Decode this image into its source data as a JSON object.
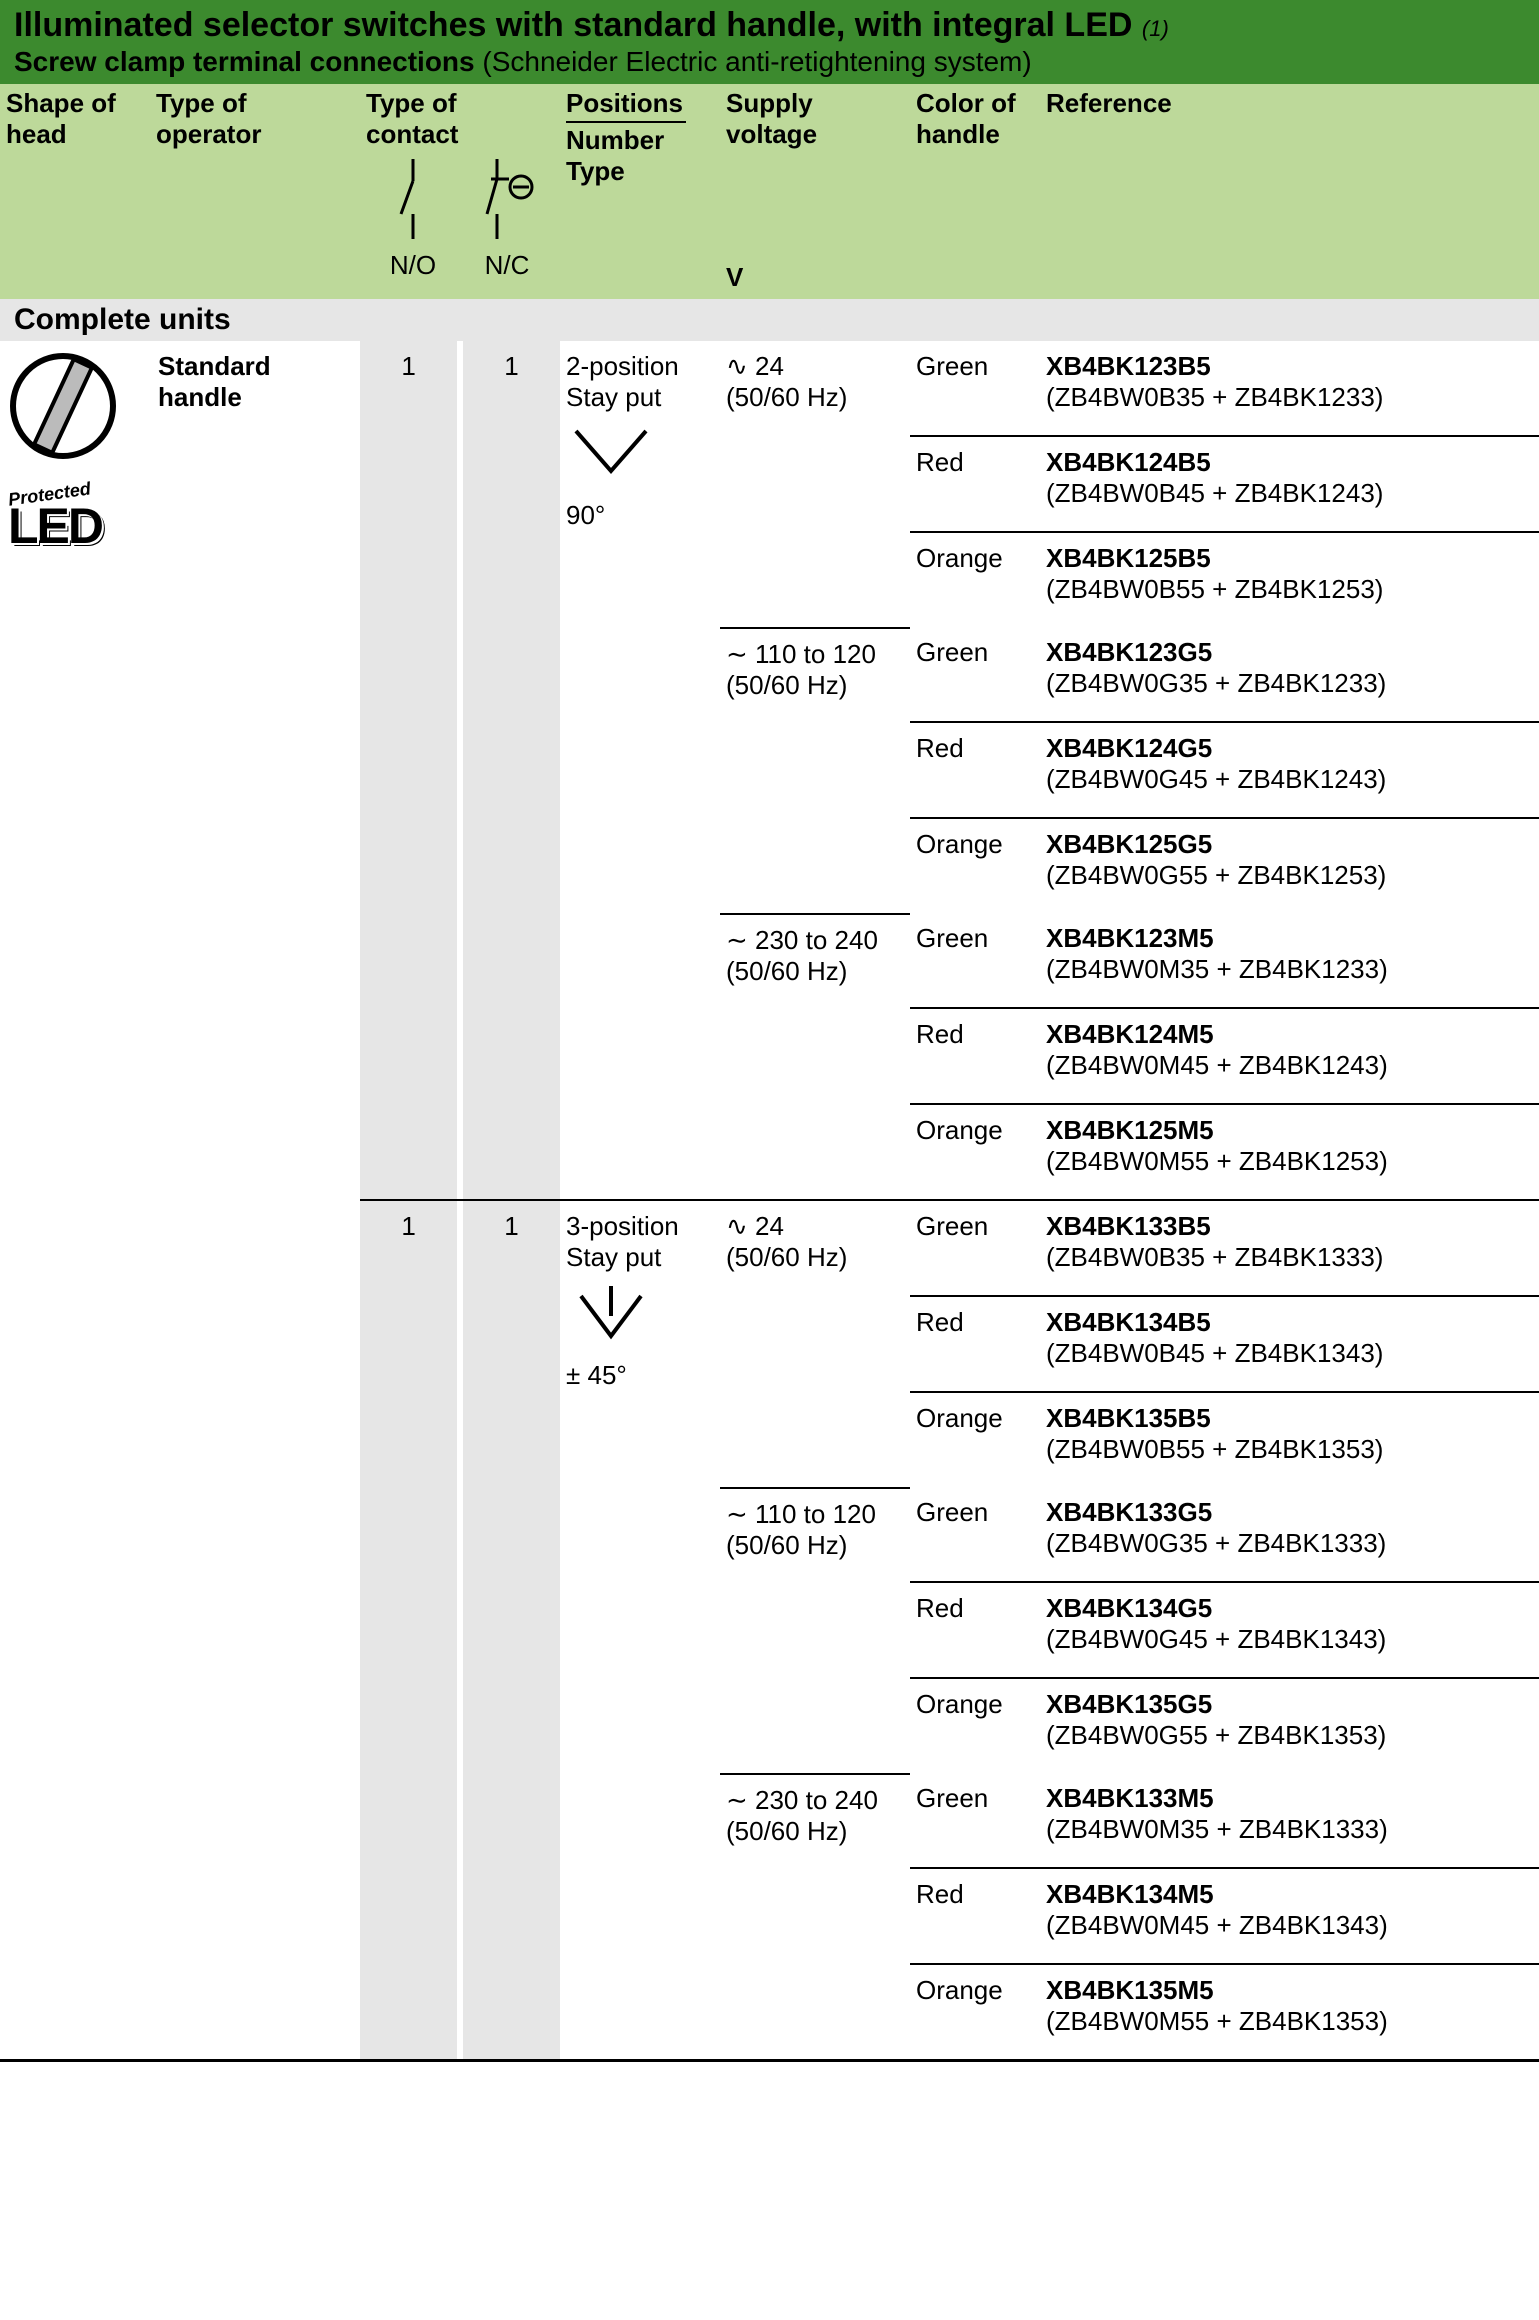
{
  "colors": {
    "header_bg": "#3c8a2e",
    "subheader_bg": "#bdd99a",
    "section_bg": "#e6e6e6",
    "contact_bg": "#e6e6e6",
    "text": "#000000",
    "rule": "#000000"
  },
  "header": {
    "title": "Illuminated selector switches with standard handle, with integral LED",
    "title_footnote": "(1)",
    "subtitle_bold": "Screw clamp terminal connections",
    "subtitle_plain": " (Schneider Electric anti-retightening system)"
  },
  "columns": {
    "shape": "Shape of head",
    "operator": "Type of operator",
    "contact": "Type of contact",
    "contact_no": "N/O",
    "contact_nc": "N/C",
    "positions": "Positions",
    "positions_sub1": "Number",
    "positions_sub2": "Type",
    "voltage": "Supply voltage",
    "voltage_unit": "V",
    "color": "Color of handle",
    "reference": "Reference"
  },
  "section_label": "Complete units",
  "operator_label": "Standard handle",
  "led_badge": {
    "line1": "Protected",
    "line2": "LED"
  },
  "sections": [
    {
      "no": "1",
      "nc": "1",
      "position_label_1": "2-position",
      "position_label_2": "Stay put",
      "angle_label": "90°",
      "angle_type": "v",
      "voltages": [
        {
          "label_1": "∿ 24",
          "label_2": "(50/60 Hz)",
          "rows": [
            {
              "color": "Green",
              "ref": "XB4BK123B5",
              "sub": "(ZB4BW0B35 + ZB4BK1233)"
            },
            {
              "color": "Red",
              "ref": "XB4BK124B5",
              "sub": "(ZB4BW0B45 + ZB4BK1243)"
            },
            {
              "color": "Orange",
              "ref": "XB4BK125B5",
              "sub": "(ZB4BW0B55 + ZB4BK1253)"
            }
          ]
        },
        {
          "label_1": "∼ 110 to 120",
          "label_2": "(50/60 Hz)",
          "rows": [
            {
              "color": "Green",
              "ref": "XB4BK123G5",
              "sub": "(ZB4BW0G35 + ZB4BK1233)"
            },
            {
              "color": "Red",
              "ref": "XB4BK124G5",
              "sub": "(ZB4BW0G45 + ZB4BK1243)"
            },
            {
              "color": "Orange",
              "ref": "XB4BK125G5",
              "sub": "(ZB4BW0G55 + ZB4BK1253)"
            }
          ]
        },
        {
          "label_1": "∼ 230 to 240",
          "label_2": "(50/60 Hz)",
          "rows": [
            {
              "color": "Green",
              "ref": "XB4BK123M5",
              "sub": "(ZB4BW0M35 + ZB4BK1233)"
            },
            {
              "color": "Red",
              "ref": "XB4BK124M5",
              "sub": "(ZB4BW0M45 + ZB4BK1243)"
            },
            {
              "color": "Orange",
              "ref": "XB4BK125M5",
              "sub": "(ZB4BW0M55 + ZB4BK1253)"
            }
          ]
        }
      ]
    },
    {
      "no": "1",
      "nc": "1",
      "position_label_1": "3-position",
      "position_label_2": "Stay put",
      "angle_label": "± 45°",
      "angle_type": "down-v",
      "voltages": [
        {
          "label_1": "∿ 24",
          "label_2": "(50/60 Hz)",
          "rows": [
            {
              "color": "Green",
              "ref": "XB4BK133B5",
              "sub": "(ZB4BW0B35 + ZB4BK1333)"
            },
            {
              "color": "Red",
              "ref": "XB4BK134B5",
              "sub": "(ZB4BW0B45 + ZB4BK1343)"
            },
            {
              "color": "Orange",
              "ref": "XB4BK135B5",
              "sub": "(ZB4BW0B55 + ZB4BK1353)"
            }
          ]
        },
        {
          "label_1": "∼ 110 to 120",
          "label_2": "(50/60 Hz)",
          "rows": [
            {
              "color": "Green",
              "ref": "XB4BK133G5",
              "sub": "(ZB4BW0G35 + ZB4BK1333)"
            },
            {
              "color": "Red",
              "ref": "XB4BK134G5",
              "sub": "(ZB4BW0G45 + ZB4BK1343)"
            },
            {
              "color": "Orange",
              "ref": "XB4BK135G5",
              "sub": "(ZB4BW0G55 + ZB4BK1353)"
            }
          ]
        },
        {
          "label_1": "∼ 230 to 240",
          "label_2": "(50/60 Hz)",
          "rows": [
            {
              "color": "Green",
              "ref": "XB4BK133M5",
              "sub": "(ZB4BW0M35 + ZB4BK1333)"
            },
            {
              "color": "Red",
              "ref": "XB4BK134M5",
              "sub": "(ZB4BW0M45 + ZB4BK1343)"
            },
            {
              "color": "Orange",
              "ref": "XB4BK135M5",
              "sub": "(ZB4BW0M55 + ZB4BK1353)"
            }
          ]
        }
      ]
    }
  ]
}
